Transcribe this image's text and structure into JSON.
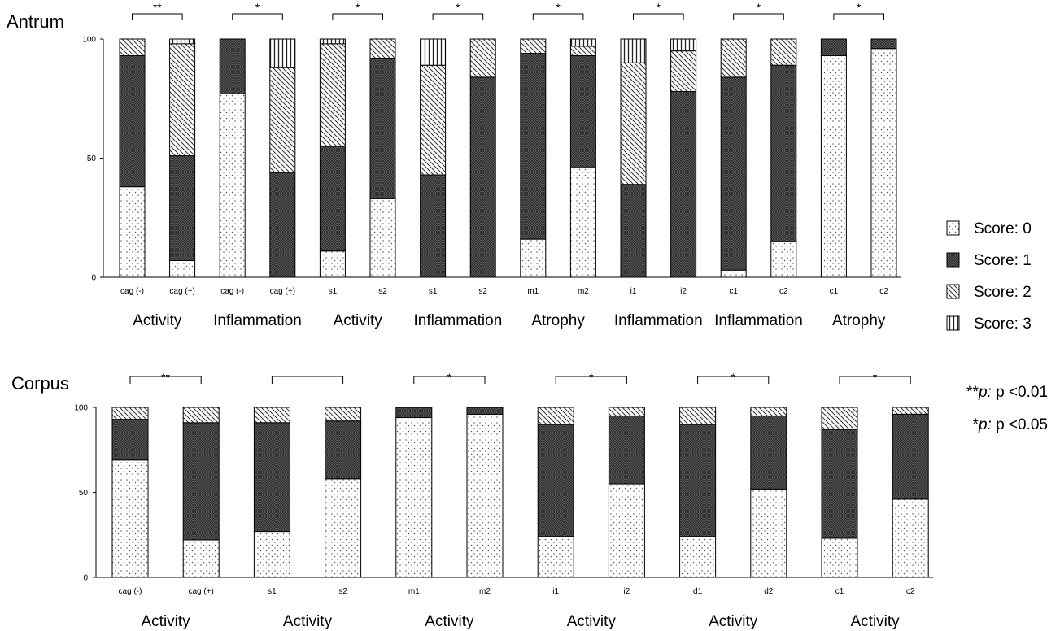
{
  "chart_data": [
    {
      "type": "bar",
      "stacked": true,
      "title": "Antrum",
      "ylim": [
        0,
        100
      ],
      "yticks": [
        0,
        50,
        100
      ],
      "grid": false,
      "categories": [
        "cag (-)",
        "cag (+)",
        "cag (-)",
        "cag (+)",
        "s1",
        "s2",
        "s1",
        "s2",
        "m1",
        "m2",
        "i1",
        "i2",
        "c1",
        "c2",
        "c1",
        "c2"
      ],
      "series": [
        {
          "name": "Score: 0",
          "values": [
            38,
            7,
            77,
            0,
            11,
            33,
            0,
            0,
            16,
            46,
            0,
            0,
            3,
            15,
            93,
            96
          ]
        },
        {
          "name": "Score: 1",
          "values": [
            55,
            44,
            23,
            44,
            44,
            59,
            43,
            84,
            78,
            47,
            39,
            78,
            81,
            74,
            7,
            4
          ]
        },
        {
          "name": "Score: 2",
          "values": [
            7,
            47,
            0,
            44,
            43,
            8,
            46,
            16,
            6,
            4,
            51,
            17,
            16,
            11,
            0,
            0
          ]
        },
        {
          "name": "Score: 3",
          "values": [
            0,
            2,
            0,
            12,
            2,
            0,
            11,
            0,
            0,
            3,
            10,
            5,
            0,
            0,
            0,
            0
          ]
        }
      ],
      "groups": [
        {
          "label": "Activity",
          "stars": "**"
        },
        {
          "label": "Inflammation",
          "stars": "*"
        },
        {
          "label": "Activity",
          "stars": "*"
        },
        {
          "label": "Inflammation",
          "stars": "*"
        },
        {
          "label": "Atrophy",
          "stars": "*"
        },
        {
          "label": "Inflammation",
          "stars": "*"
        },
        {
          "label": "Inflammation",
          "stars": "*"
        },
        {
          "label": "Atrophy",
          "stars": "*"
        }
      ]
    },
    {
      "type": "bar",
      "stacked": true,
      "title": "Corpus",
      "ylim": [
        0,
        100
      ],
      "yticks": [
        0,
        50,
        100
      ],
      "grid": false,
      "categories": [
        "cag (-)",
        "cag (+)",
        "s1",
        "s2",
        "m1",
        "m2",
        "i1",
        "i2",
        "d1",
        "d2",
        "c1",
        "c2"
      ],
      "series": [
        {
          "name": "Score: 0",
          "values": [
            69,
            22,
            27,
            58,
            94,
            96,
            24,
            55,
            24,
            52,
            23,
            46
          ]
        },
        {
          "name": "Score: 1",
          "values": [
            24,
            69,
            64,
            34,
            6,
            4,
            66,
            40,
            66,
            43,
            64,
            50
          ]
        },
        {
          "name": "Score: 2",
          "values": [
            7,
            9,
            9,
            8,
            0,
            0,
            10,
            5,
            10,
            5,
            13,
            4
          ]
        },
        {
          "name": "Score: 3",
          "values": [
            0,
            0,
            0,
            0,
            0,
            0,
            0,
            0,
            0,
            0,
            0,
            0
          ]
        }
      ],
      "groups": [
        {
          "label": "Activity",
          "stars": "**"
        },
        {
          "label": "Activity",
          "stars": ""
        },
        {
          "label": "Activity",
          "stars": "*"
        },
        {
          "label": "Activity",
          "stars": "*"
        },
        {
          "label": "Activity",
          "stars": "*"
        },
        {
          "label": "Activity",
          "stars": "*"
        }
      ]
    }
  ],
  "legend": {
    "placement": "right",
    "items": [
      "Score: 0",
      "Score: 1",
      "Score: 2",
      "Score: 3"
    ]
  },
  "notes": [
    {
      "stars": "**",
      "p": "p:",
      "text": " p <0.01"
    },
    {
      "stars": "*",
      "p": "p:",
      "text": " p <0.05"
    }
  ]
}
